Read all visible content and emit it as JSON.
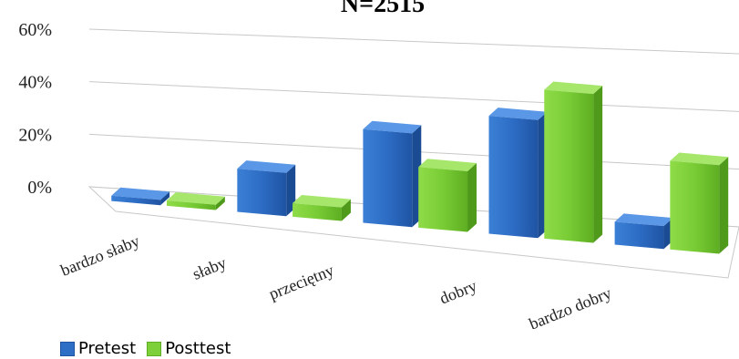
{
  "chart_data": {
    "type": "bar",
    "title": "N=2515",
    "categories": [
      "bardzo słaby",
      "słaby",
      "przeciętny",
      "dobry",
      "bardzo dobry"
    ],
    "y_ticks": [
      "0%",
      "20%",
      "40%",
      "60%"
    ],
    "ylim": [
      0,
      60
    ],
    "grid": true,
    "legend_position": "bottom-left",
    "series": [
      {
        "name": "Pretest",
        "values": [
          2,
          16,
          34,
          42,
          8
        ],
        "color": "#2e6fc6"
      },
      {
        "name": "Posttest",
        "values": [
          2,
          5,
          22,
          53,
          31
        ],
        "color": "#7ed03a"
      }
    ]
  }
}
